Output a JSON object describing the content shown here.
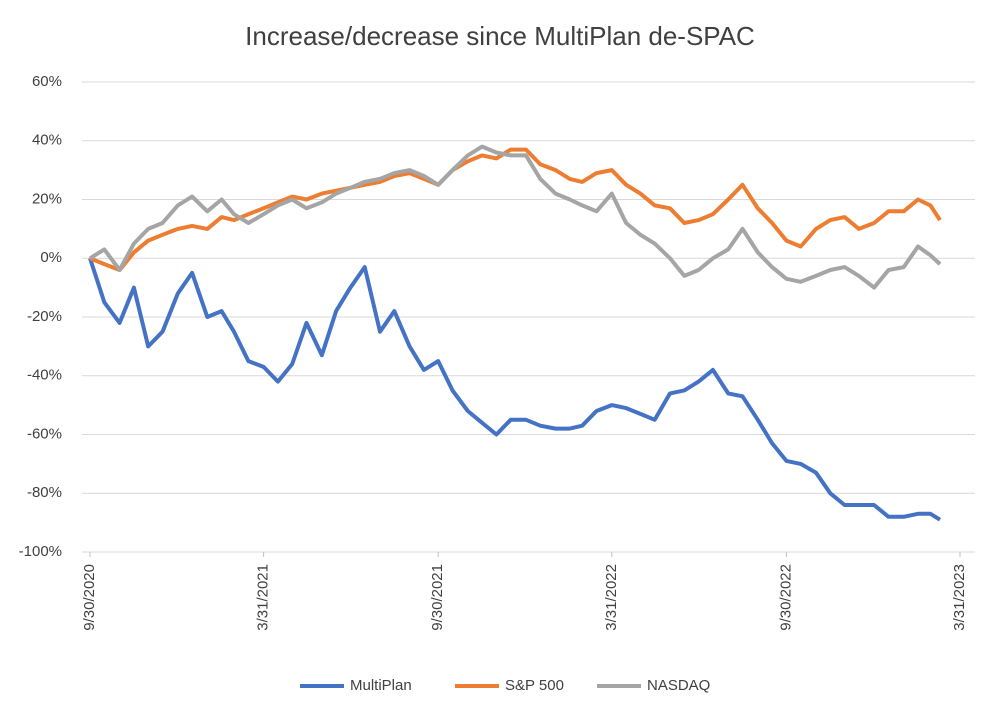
{
  "chart_data": {
    "type": "line",
    "title": "Increase/decrease since MultiPlan de-SPAC",
    "x": [
      "9/30/2020",
      "10/15/2020",
      "10/31/2020",
      "11/15/2020",
      "11/30/2020",
      "12/15/2020",
      "12/31/2020",
      "1/15/2021",
      "1/31/2021",
      "2/15/2021",
      "2/28/2021",
      "3/15/2021",
      "3/31/2021",
      "4/15/2021",
      "4/30/2021",
      "5/15/2021",
      "5/31/2021",
      "6/15/2021",
      "6/30/2021",
      "7/15/2021",
      "7/31/2021",
      "8/15/2021",
      "8/31/2021",
      "9/15/2021",
      "9/30/2021",
      "10/15/2021",
      "10/31/2021",
      "11/15/2021",
      "11/30/2021",
      "12/15/2021",
      "12/31/2021",
      "1/15/2022",
      "1/31/2022",
      "2/15/2022",
      "2/28/2022",
      "3/15/2022",
      "3/31/2022",
      "4/15/2022",
      "4/30/2022",
      "5/15/2022",
      "5/31/2022",
      "6/15/2022",
      "6/30/2022",
      "7/15/2022",
      "7/31/2022",
      "8/15/2022",
      "8/31/2022",
      "9/15/2022",
      "9/30/2022",
      "10/15/2022",
      "10/31/2022",
      "11/15/2022",
      "11/30/2022",
      "12/15/2022",
      "12/31/2022",
      "1/15/2023",
      "1/31/2023",
      "2/15/2023",
      "2/28/2023",
      "3/10/2023"
    ],
    "series": [
      {
        "name": "MultiPlan",
        "color": "#4472c4",
        "values": [
          0,
          -15,
          -22,
          -10,
          -30,
          -25,
          -12,
          -5,
          -20,
          -18,
          -25,
          -35,
          -37,
          -42,
          -36,
          -22,
          -33,
          -18,
          -10,
          -3,
          -25,
          -18,
          -30,
          -38,
          -35,
          -45,
          -52,
          -56,
          -60,
          -55,
          -55,
          -57,
          -58,
          -58,
          -57,
          -52,
          -50,
          -51,
          -53,
          -55,
          -46,
          -45,
          -42,
          -38,
          -46,
          -47,
          -55,
          -63,
          -69,
          -70,
          -73,
          -80,
          -84,
          -84,
          -84,
          -88,
          -88,
          -87,
          -87,
          -89
        ]
      },
      {
        "name": "S&P 500",
        "color": "#ed7d31",
        "values": [
          0,
          -2,
          -4,
          2,
          6,
          8,
          10,
          11,
          10,
          14,
          13,
          15,
          17,
          19,
          21,
          20,
          22,
          23,
          24,
          25,
          26,
          28,
          29,
          27,
          25,
          30,
          33,
          35,
          34,
          37,
          37,
          32,
          30,
          27,
          26,
          29,
          30,
          25,
          22,
          18,
          17,
          12,
          13,
          15,
          20,
          25,
          17,
          12,
          6,
          4,
          10,
          13,
          14,
          10,
          12,
          16,
          16,
          20,
          18,
          13
        ]
      },
      {
        "name": "NASDAQ",
        "color": "#a5a5a5",
        "values": [
          0,
          3,
          -4,
          5,
          10,
          12,
          18,
          21,
          16,
          20,
          15,
          12,
          15,
          18,
          20,
          17,
          19,
          22,
          24,
          26,
          27,
          29,
          30,
          28,
          25,
          30,
          35,
          38,
          36,
          35,
          35,
          27,
          22,
          20,
          18,
          16,
          22,
          12,
          8,
          5,
          0,
          -6,
          -4,
          0,
          3,
          10,
          2,
          -3,
          -7,
          -8,
          -6,
          -4,
          -3,
          -6,
          -10,
          -4,
          -3,
          4,
          1,
          -2
        ]
      }
    ],
    "xlim": [
      "9/30/2020",
      "3/31/2023"
    ],
    "xticks": [
      "9/30/2020",
      "3/31/2021",
      "9/30/2021",
      "3/31/2022",
      "9/30/2022",
      "3/31/2023"
    ],
    "ylim": [
      -100,
      60
    ],
    "yticks": [
      {
        "value": -100,
        "label": "-100%"
      },
      {
        "value": -80,
        "label": "-80%"
      },
      {
        "value": -60,
        "label": "-60%"
      },
      {
        "value": -40,
        "label": "-40%"
      },
      {
        "value": -20,
        "label": "-20%"
      },
      {
        "value": 0,
        "label": "0%"
      },
      {
        "value": 20,
        "label": "20%"
      },
      {
        "value": 40,
        "label": "40%"
      },
      {
        "value": 60,
        "label": "60%"
      }
    ],
    "grid": true,
    "legend": "bottom"
  }
}
